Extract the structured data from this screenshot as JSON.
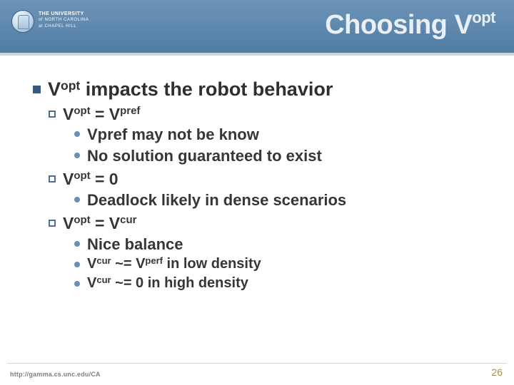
{
  "colors": {
    "header_gradient": [
      "#6e95b8",
      "#5d87ad",
      "#517ca4"
    ],
    "header_underline": "#c9d6e2",
    "bullet_solid": "#385a7f",
    "bullet_outline_border": "#4c6f93",
    "bullet_dot": "#6a8fb2",
    "text": "#2f2f2f",
    "footer_text": "#7f7f7f",
    "pagenum_color": "#b08c55",
    "rule": "#d8d8d8"
  },
  "university": {
    "line1": "THE UNIVERSITY",
    "line2": "of NORTH CAROLINA",
    "line3": "at CHAPEL HILL"
  },
  "title": {
    "plain": "Choosing V",
    "sup": "opt"
  },
  "l1": {
    "prefix": "V",
    "sup": "opt",
    "rest": " impacts the robot behavior"
  },
  "s1": {
    "lhs_base": "V",
    "lhs_sup": "opt",
    "rhs_base": "V",
    "rhs_sup": "pref"
  },
  "s1b1": "Vpref may not be know",
  "s1b2": "No solution guaranteed to exist",
  "s2": {
    "lhs_base": "V",
    "lhs_sup": "opt",
    "rhs": "0"
  },
  "s2b1": "Deadlock likely in dense scenarios",
  "s3": {
    "lhs_base": "V",
    "lhs_sup": "opt",
    "rhs_base": "V",
    "rhs_sup": "cur"
  },
  "s3b1": "Nice balance",
  "s3b2": {
    "a_base": "V",
    "a_sup": "cur",
    "b_base": "V",
    "b_sup": "perf",
    "tail": " in low density"
  },
  "s3b3": {
    "a_base": "V",
    "a_sup": "cur",
    "tail": " in high density"
  },
  "footer": "http://gamma.cs.unc.edu/CA",
  "page": "26"
}
